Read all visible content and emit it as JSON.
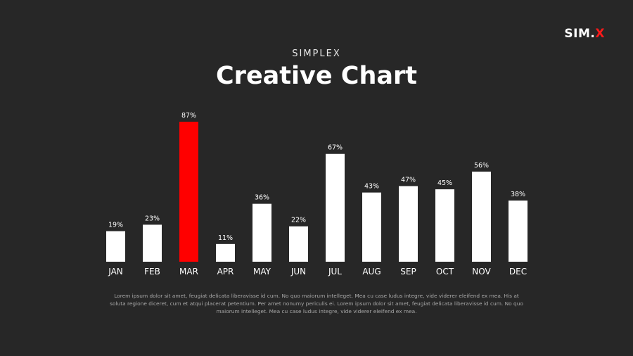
{
  "header": {
    "logo_main": "SIM",
    "logo_sep": ".",
    "logo_accent": "X",
    "subtitle": "SIMPLEX",
    "title": "Creative Chart"
  },
  "colors": {
    "background": "#272727",
    "bar": "#ffffff",
    "highlight": "#ff0000",
    "text": "#ffffff"
  },
  "chart_data": {
    "type": "bar",
    "categories": [
      "JAN",
      "FEB",
      "MAR",
      "APR",
      "MAY",
      "JUN",
      "JUL",
      "AUG",
      "SEP",
      "OCT",
      "NOV",
      "DEC"
    ],
    "values": [
      19,
      23,
      87,
      11,
      36,
      22,
      67,
      43,
      47,
      45,
      56,
      38
    ],
    "labels": [
      "19%",
      "23%",
      "87%",
      "11%",
      "36%",
      "22%",
      "67%",
      "43%",
      "47%",
      "45%",
      "56%",
      "38%"
    ],
    "highlight_index": 2,
    "ylim": [
      0,
      100
    ],
    "grid": false,
    "title": "",
    "xlabel": "",
    "ylabel": ""
  },
  "body": {
    "text": "Lorem ipsum dolor sit amet, feugiat delicata liberavisse id cum. No quo maiorum intelleget. Mea cu case ludus integre, vide viderer eleifend ex mea. His at soluta regione diceret, cum et atqui placerat petentium. Per amet nonumy periculis ei. Lorem ipsum dolor sit amet, feugiat delicata liberavisse id cum. No quo maiorum intelleget. Mea cu case ludus integre, vide viderer eleifend ex mea."
  }
}
